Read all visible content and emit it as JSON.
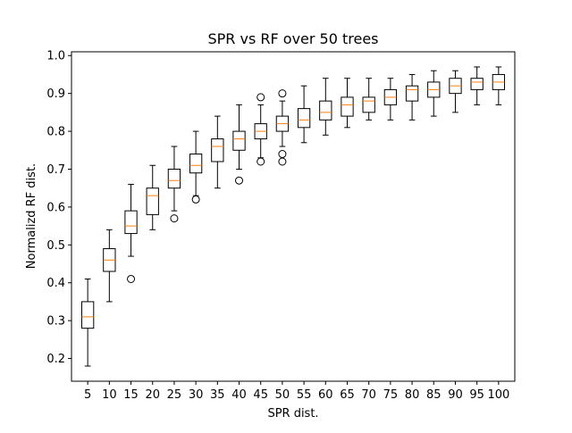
{
  "chart_data": {
    "type": "box",
    "title": "SPR vs RF over 50 trees",
    "xlabel": "SPR dist.",
    "ylabel": "Normalizd RF dist.",
    "ylim": [
      0.14,
      1.01
    ],
    "yticks": [
      "0.2",
      "0.3",
      "0.4",
      "0.5",
      "0.6",
      "0.7",
      "0.8",
      "0.9",
      "1.0"
    ],
    "ytick_values": [
      0.2,
      0.3,
      0.4,
      0.5,
      0.6,
      0.7,
      0.8,
      0.9,
      1.0
    ],
    "categories": [
      "5",
      "10",
      "15",
      "20",
      "25",
      "30",
      "35",
      "40",
      "45",
      "50",
      "55",
      "60",
      "65",
      "70",
      "75",
      "80",
      "85",
      "90",
      "95",
      "100"
    ],
    "grid": false,
    "colors": {
      "box": "#000000",
      "median": "#ff7f0e",
      "flier": "#000000"
    },
    "boxes": [
      {
        "whislo": 0.18,
        "q1": 0.28,
        "med": 0.31,
        "q3": 0.35,
        "whishi": 0.41,
        "fliers": []
      },
      {
        "whislo": 0.35,
        "q1": 0.43,
        "med": 0.46,
        "q3": 0.49,
        "whishi": 0.54,
        "fliers": []
      },
      {
        "whislo": 0.47,
        "q1": 0.53,
        "med": 0.55,
        "q3": 0.59,
        "whishi": 0.66,
        "fliers": [
          0.41
        ]
      },
      {
        "whislo": 0.54,
        "q1": 0.58,
        "med": 0.63,
        "q3": 0.65,
        "whishi": 0.71,
        "fliers": []
      },
      {
        "whislo": 0.59,
        "q1": 0.65,
        "med": 0.67,
        "q3": 0.7,
        "whishi": 0.76,
        "fliers": [
          0.57
        ]
      },
      {
        "whislo": 0.63,
        "q1": 0.69,
        "med": 0.71,
        "q3": 0.74,
        "whishi": 0.8,
        "fliers": [
          0.62
        ]
      },
      {
        "whislo": 0.65,
        "q1": 0.72,
        "med": 0.76,
        "q3": 0.78,
        "whishi": 0.84,
        "fliers": []
      },
      {
        "whislo": 0.7,
        "q1": 0.75,
        "med": 0.78,
        "q3": 0.8,
        "whishi": 0.87,
        "fliers": [
          0.67
        ]
      },
      {
        "whislo": 0.73,
        "q1": 0.78,
        "med": 0.8,
        "q3": 0.82,
        "whishi": 0.87,
        "fliers": [
          0.89,
          0.72
        ]
      },
      {
        "whislo": 0.76,
        "q1": 0.8,
        "med": 0.82,
        "q3": 0.84,
        "whishi": 0.88,
        "fliers": [
          0.9,
          0.74,
          0.72
        ]
      },
      {
        "whislo": 0.77,
        "q1": 0.81,
        "med": 0.83,
        "q3": 0.86,
        "whishi": 0.92,
        "fliers": []
      },
      {
        "whislo": 0.79,
        "q1": 0.83,
        "med": 0.85,
        "q3": 0.88,
        "whishi": 0.94,
        "fliers": []
      },
      {
        "whislo": 0.81,
        "q1": 0.84,
        "med": 0.87,
        "q3": 0.89,
        "whishi": 0.94,
        "fliers": []
      },
      {
        "whislo": 0.83,
        "q1": 0.85,
        "med": 0.88,
        "q3": 0.89,
        "whishi": 0.94,
        "fliers": []
      },
      {
        "whislo": 0.83,
        "q1": 0.87,
        "med": 0.89,
        "q3": 0.91,
        "whishi": 0.94,
        "fliers": []
      },
      {
        "whislo": 0.83,
        "q1": 0.88,
        "med": 0.91,
        "q3": 0.92,
        "whishi": 0.95,
        "fliers": []
      },
      {
        "whislo": 0.84,
        "q1": 0.89,
        "med": 0.91,
        "q3": 0.93,
        "whishi": 0.96,
        "fliers": []
      },
      {
        "whislo": 0.85,
        "q1": 0.9,
        "med": 0.92,
        "q3": 0.94,
        "whishi": 0.96,
        "fliers": []
      },
      {
        "whislo": 0.87,
        "q1": 0.91,
        "med": 0.93,
        "q3": 0.94,
        "whishi": 0.97,
        "fliers": []
      },
      {
        "whislo": 0.87,
        "q1": 0.91,
        "med": 0.93,
        "q3": 0.95,
        "whishi": 0.97,
        "fliers": []
      }
    ]
  }
}
